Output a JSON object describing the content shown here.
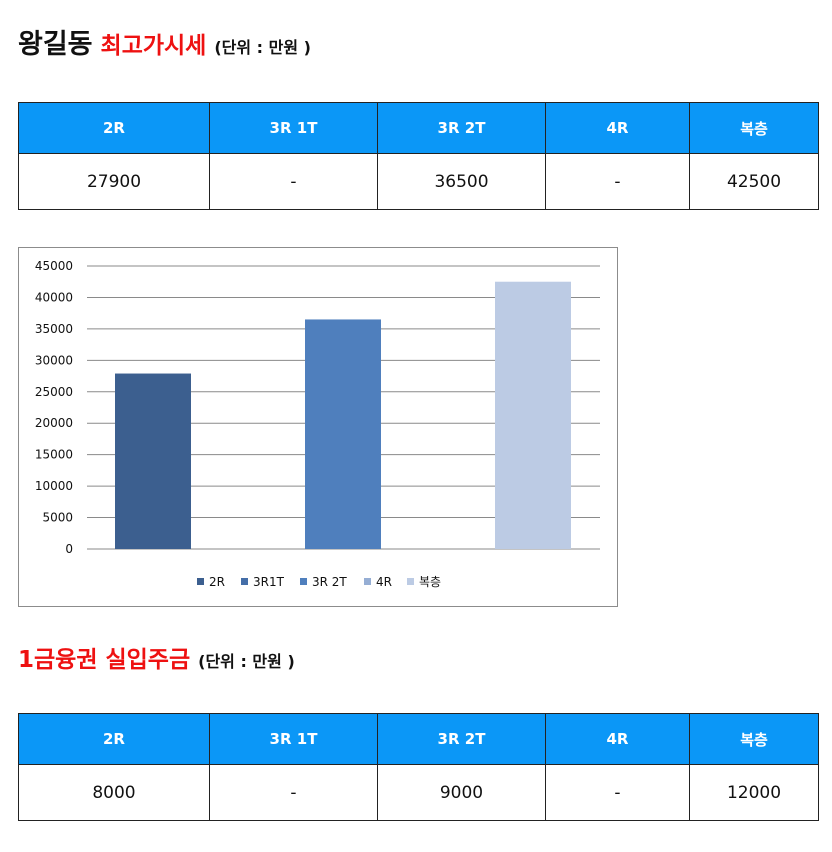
{
  "section1": {
    "name": "왕길동",
    "title": "최고가시세",
    "unit": "(단위 : 만원 )",
    "table": {
      "headers": [
        "2R",
        "3R 1T",
        "3R 2T",
        "4R",
        "복층"
      ],
      "values": [
        "27900",
        "-",
        "36500",
        "-",
        "42500"
      ]
    }
  },
  "section2": {
    "title": "1금융권 실입주금",
    "unit": "(단위 : 만원 )",
    "table": {
      "headers": [
        "2R",
        "3R 1T",
        "3R 2T",
        "4R",
        "복층"
      ],
      "values": [
        "8000",
        "-",
        "9000",
        "-",
        "12000"
      ]
    }
  },
  "colors": {
    "header_bg": "#0b97f7",
    "title_red": "#ee1111",
    "bar_2r": "#3c5f8f",
    "bar_3r2t": "#4f7fbd",
    "bar_3r1t": "#446ea8",
    "bar_4r": "#96aed4",
    "bar_duplex": "#bccbe4"
  },
  "chart_data": {
    "type": "bar",
    "categories": [
      "2R",
      "3R1T",
      "3R 2T",
      "4R",
      "복층"
    ],
    "values": [
      27900,
      null,
      36500,
      null,
      42500
    ],
    "ylim": [
      0,
      45000
    ],
    "yticks": [
      0,
      5000,
      10000,
      15000,
      20000,
      25000,
      30000,
      35000,
      40000,
      45000
    ],
    "grid": true,
    "legend": "bottom",
    "legend_entries": [
      "2R",
      "3R1T",
      "3R 2T",
      "4R",
      "복층"
    ]
  }
}
